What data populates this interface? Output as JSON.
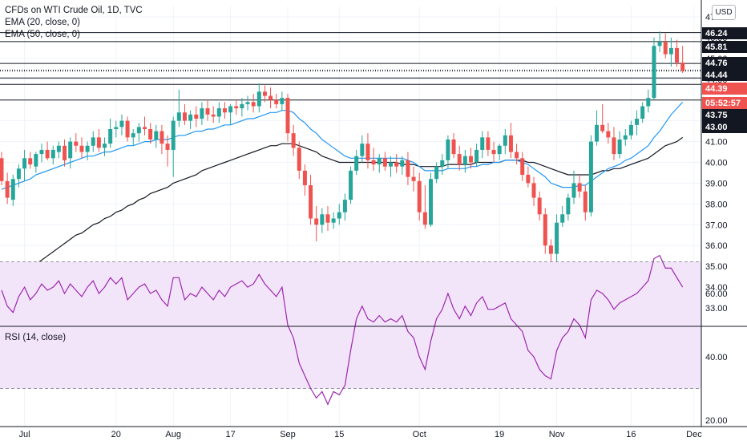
{
  "legend": {
    "title": "CFDs on WTI Crude Oil, 1D, TVC",
    "ema20": "EMA (20, close, 0)",
    "ema50": "EMA (50, close, 0)"
  },
  "rsi_label": "RSI (14, close)",
  "currency": "USD",
  "price_labels": [
    {
      "text": "46.24",
      "style": "dark"
    },
    {
      "text": "45.81",
      "style": "dark"
    },
    {
      "text": "44.76",
      "style": "dark"
    },
    {
      "text": "44.44",
      "style": "dark"
    },
    {
      "text": "44.39",
      "style": "red"
    },
    {
      "text": "05:52:57",
      "style": "red"
    },
    {
      "text": "43.75",
      "style": "dark"
    },
    {
      "text": "43.00",
      "style": "dark"
    }
  ],
  "colors": {
    "up": "#26a69a",
    "down": "#ef5350",
    "ema20": "#2196f3",
    "ema50": "#131722",
    "rsi": "#9c27b0",
    "rsi_band": "#f3e5f9"
  },
  "chart_data": [
    {
      "type": "candlestick",
      "title": "CFDs on WTI Crude Oil, 1D, TVC",
      "ylim": [
        32.5,
        47.2
      ],
      "y_ticks": [
        "33.00",
        "34.00",
        "35.00",
        "36.00",
        "37.00",
        "38.00",
        "39.00",
        "40.00",
        "41.00",
        "42.00",
        "43.00",
        "44.00",
        "45.00",
        "46.00",
        "47.00"
      ],
      "x_ticks": [
        "Jul",
        "20",
        "Aug",
        "17",
        "Sep",
        "15",
        "Oct",
        "19",
        "Nov",
        "16",
        "Dec"
      ],
      "x_tick_index": [
        4,
        20,
        30,
        40,
        50,
        59,
        73,
        87,
        97,
        110,
        121
      ],
      "horizontal_levels": [
        46.24,
        45.81,
        44.76,
        44.44,
        44.39,
        44.06,
        43.75,
        43.0
      ],
      "candles": [
        [
          40.2,
          40.5,
          38.9,
          39.1
        ],
        [
          39.1,
          39.5,
          38.0,
          38.3
        ],
        [
          38.2,
          39.4,
          37.9,
          39.2
        ],
        [
          39.2,
          39.9,
          38.8,
          39.7
        ],
        [
          39.7,
          40.6,
          39.1,
          40.2
        ],
        [
          40.2,
          40.5,
          39.7,
          39.9
        ],
        [
          39.8,
          40.5,
          39.5,
          40.4
        ],
        [
          40.4,
          40.9,
          40.0,
          40.6
        ],
        [
          40.6,
          41.0,
          40.1,
          40.2
        ],
        [
          40.2,
          40.8,
          39.9,
          40.6
        ],
        [
          40.5,
          41.0,
          40.2,
          40.8
        ],
        [
          40.8,
          41.1,
          39.8,
          40.1
        ],
        [
          40.2,
          41.2,
          39.7,
          41.0
        ],
        [
          41.0,
          41.4,
          40.5,
          40.8
        ],
        [
          40.8,
          41.2,
          40.2,
          40.5
        ],
        [
          40.5,
          41.0,
          40.1,
          40.8
        ],
        [
          40.8,
          41.5,
          40.5,
          41.2
        ],
        [
          41.2,
          41.6,
          40.5,
          40.7
        ],
        [
          40.7,
          41.2,
          40.3,
          40.9
        ],
        [
          40.9,
          42.1,
          40.7,
          41.6
        ],
        [
          41.6,
          42.0,
          41.2,
          41.7
        ],
        [
          41.7,
          42.3,
          41.3,
          42.0
        ],
        [
          42.0,
          42.2,
          41.0,
          41.2
        ],
        [
          41.2,
          41.6,
          40.8,
          41.4
        ],
        [
          41.4,
          41.9,
          41.0,
          41.7
        ],
        [
          41.7,
          42.2,
          41.3,
          41.6
        ],
        [
          41.6,
          41.9,
          40.9,
          41.1
        ],
        [
          41.1,
          41.8,
          40.7,
          41.5
        ],
        [
          41.5,
          41.8,
          40.4,
          40.9
        ],
        [
          40.9,
          41.3,
          39.8,
          40.6
        ],
        [
          40.6,
          42.2,
          39.3,
          42.0
        ],
        [
          42.0,
          43.5,
          41.7,
          42.4
        ],
        [
          42.4,
          42.8,
          41.8,
          42.0
        ],
        [
          42.0,
          42.5,
          41.6,
          42.3
        ],
        [
          42.3,
          42.7,
          41.7,
          42.1
        ],
        [
          42.1,
          42.9,
          41.8,
          42.6
        ],
        [
          42.6,
          43.0,
          42.0,
          42.3
        ],
        [
          42.3,
          42.7,
          41.9,
          42.2
        ],
        [
          42.2,
          42.9,
          41.9,
          42.6
        ],
        [
          42.6,
          42.9,
          42.1,
          42.4
        ],
        [
          42.4,
          42.8,
          41.8,
          42.7
        ],
        [
          42.7,
          43.0,
          42.3,
          42.6
        ],
        [
          42.6,
          43.1,
          42.2,
          42.8
        ],
        [
          42.8,
          43.2,
          42.5,
          42.9
        ],
        [
          42.9,
          43.3,
          42.4,
          42.7
        ],
        [
          42.7,
          43.8,
          42.4,
          43.4
        ],
        [
          43.4,
          43.7,
          42.9,
          43.2
        ],
        [
          43.2,
          43.6,
          42.6,
          43.0
        ],
        [
          43.0,
          43.3,
          42.6,
          42.8
        ],
        [
          42.8,
          43.4,
          42.5,
          43.1
        ],
        [
          43.1,
          43.3,
          41.0,
          41.4
        ],
        [
          41.4,
          41.8,
          40.3,
          40.7
        ],
        [
          40.7,
          41.0,
          39.2,
          39.6
        ],
        [
          39.6,
          39.9,
          38.4,
          38.9
        ],
        [
          38.9,
          39.4,
          37.0,
          37.3
        ],
        [
          37.3,
          37.9,
          36.2,
          37.0
        ],
        [
          37.0,
          37.8,
          36.6,
          37.5
        ],
        [
          37.5,
          37.9,
          36.7,
          37.1
        ],
        [
          37.1,
          37.6,
          36.8,
          37.3
        ],
        [
          37.3,
          38.0,
          37.0,
          37.6
        ],
        [
          37.6,
          38.5,
          37.2,
          38.2
        ],
        [
          38.2,
          39.8,
          38.0,
          39.6
        ],
        [
          39.6,
          40.6,
          39.4,
          40.3
        ],
        [
          40.3,
          41.3,
          40.0,
          40.9
        ],
        [
          40.9,
          41.4,
          39.7,
          40.1
        ],
        [
          40.1,
          40.7,
          39.6,
          39.9
        ],
        [
          39.9,
          40.4,
          39.5,
          40.2
        ],
        [
          40.2,
          40.5,
          39.6,
          39.8
        ],
        [
          39.8,
          40.3,
          39.3,
          40.0
        ],
        [
          40.0,
          40.4,
          39.5,
          39.8
        ],
        [
          39.8,
          40.3,
          39.4,
          40.1
        ],
        [
          40.1,
          40.5,
          38.9,
          39.3
        ],
        [
          39.3,
          39.8,
          38.6,
          39.1
        ],
        [
          39.1,
          39.5,
          37.2,
          37.6
        ],
        [
          37.6,
          38.9,
          36.8,
          37.0
        ],
        [
          37.0,
          39.5,
          36.9,
          39.2
        ],
        [
          39.2,
          40.0,
          39.0,
          39.8
        ],
        [
          39.8,
          40.4,
          39.4,
          40.1
        ],
        [
          40.1,
          41.3,
          39.7,
          41.1
        ],
        [
          41.1,
          41.4,
          40.2,
          40.4
        ],
        [
          40.4,
          40.8,
          39.6,
          39.9
        ],
        [
          39.9,
          40.6,
          39.5,
          40.3
        ],
        [
          40.3,
          40.7,
          39.7,
          40.0
        ],
        [
          40.0,
          40.9,
          39.8,
          40.6
        ],
        [
          40.6,
          41.5,
          40.2,
          41.2
        ],
        [
          41.2,
          41.5,
          40.3,
          40.6
        ],
        [
          40.6,
          41.0,
          40.0,
          40.4
        ],
        [
          40.4,
          40.9,
          40.1,
          40.8
        ],
        [
          40.8,
          41.6,
          40.4,
          41.3
        ],
        [
          41.3,
          41.9,
          40.2,
          40.5
        ],
        [
          40.5,
          40.9,
          39.9,
          40.2
        ],
        [
          40.2,
          40.5,
          39.1,
          39.4
        ],
        [
          39.4,
          39.8,
          38.8,
          39.0
        ],
        [
          39.0,
          39.3,
          37.9,
          38.3
        ],
        [
          38.3,
          38.6,
          37.2,
          37.5
        ],
        [
          37.5,
          37.8,
          35.6,
          36.0
        ],
        [
          36.0,
          36.3,
          34.9,
          35.6
        ],
        [
          35.6,
          37.5,
          33.7,
          37.1
        ],
        [
          37.1,
          37.9,
          36.9,
          37.5
        ],
        [
          37.5,
          38.5,
          37.2,
          38.3
        ],
        [
          38.3,
          39.6,
          38.0,
          39.0
        ],
        [
          39.0,
          39.4,
          38.3,
          38.6
        ],
        [
          38.6,
          38.9,
          37.2,
          37.6
        ],
        [
          37.6,
          41.3,
          37.4,
          41.0
        ],
        [
          41.0,
          42.5,
          40.8,
          41.8
        ],
        [
          41.8,
          42.8,
          41.4,
          41.5
        ],
        [
          41.5,
          41.9,
          40.9,
          41.2
        ],
        [
          41.2,
          41.7,
          40.1,
          40.4
        ],
        [
          40.4,
          41.5,
          40.2,
          41.1
        ],
        [
          41.1,
          41.6,
          40.8,
          41.3
        ],
        [
          41.3,
          42.0,
          41.1,
          41.8
        ],
        [
          41.8,
          42.5,
          41.3,
          42.1
        ],
        [
          42.1,
          42.9,
          41.9,
          42.7
        ],
        [
          42.7,
          43.5,
          42.4,
          43.1
        ],
        [
          43.1,
          46.0,
          43.0,
          45.6
        ],
        [
          45.6,
          46.3,
          45.3,
          45.8
        ],
        [
          45.8,
          46.2,
          45.0,
          45.2
        ],
        [
          45.2,
          46.0,
          44.6,
          45.5
        ],
        [
          45.5,
          45.9,
          44.6,
          44.8
        ],
        [
          44.8,
          45.6,
          44.3,
          44.4
        ]
      ],
      "series": [
        {
          "name": "EMA (20, close, 0)",
          "values": [
            38.7,
            38.8,
            38.9,
            39.0,
            39.1,
            39.2,
            39.4,
            39.5,
            39.6,
            39.7,
            39.8,
            39.9,
            40.0,
            40.1,
            40.2,
            40.3,
            40.3,
            40.4,
            40.5,
            40.5,
            40.6,
            40.7,
            40.8,
            40.8,
            40.9,
            41.0,
            41.0,
            41.1,
            41.1,
            41.1,
            41.2,
            41.3,
            41.3,
            41.4,
            41.5,
            41.5,
            41.6,
            41.6,
            41.7,
            41.8,
            41.8,
            41.9,
            42.0,
            42.1,
            42.1,
            42.2,
            42.3,
            42.4,
            42.4,
            42.5,
            42.5,
            42.4,
            42.1,
            41.9,
            41.6,
            41.4,
            41.1,
            40.9,
            40.7,
            40.5,
            40.3,
            40.2,
            40.2,
            40.2,
            40.2,
            40.2,
            40.2,
            40.2,
            40.2,
            40.2,
            40.2,
            40.1,
            40.0,
            39.8,
            39.6,
            39.6,
            39.6,
            39.6,
            39.7,
            39.7,
            39.7,
            39.7,
            39.8,
            39.8,
            39.9,
            39.9,
            40.0,
            40.0,
            40.1,
            40.1,
            40.1,
            40.0,
            39.9,
            39.7,
            39.5,
            39.3,
            39.0,
            38.9,
            38.8,
            38.8,
            38.8,
            38.9,
            38.9,
            39.1,
            39.3,
            39.5,
            39.7,
            39.8,
            39.9,
            40.1,
            40.2,
            40.4,
            40.6,
            40.8,
            41.2,
            41.5,
            41.9,
            42.3,
            42.6,
            42.9
          ]
        },
        {
          "name": "EMA (50, close, 0)",
          "values": [
            33.6,
            33.9,
            34.2,
            34.4,
            34.6,
            34.9,
            35.1,
            35.3,
            35.5,
            35.7,
            35.9,
            36.1,
            36.3,
            36.5,
            36.6,
            36.8,
            37.0,
            37.1,
            37.3,
            37.4,
            37.6,
            37.7,
            37.9,
            38.0,
            38.2,
            38.3,
            38.5,
            38.6,
            38.7,
            38.8,
            39.0,
            39.1,
            39.2,
            39.3,
            39.4,
            39.6,
            39.7,
            39.8,
            39.9,
            40.0,
            40.1,
            40.2,
            40.3,
            40.4,
            40.5,
            40.6,
            40.7,
            40.8,
            40.8,
            40.9,
            40.9,
            40.9,
            40.8,
            40.7,
            40.6,
            40.5,
            40.3,
            40.2,
            40.1,
            40.0,
            40.0,
            40.0,
            40.0,
            40.0,
            40.0,
            40.0,
            40.0,
            40.0,
            40.0,
            40.0,
            39.9,
            39.9,
            39.9,
            39.8,
            39.8,
            39.8,
            39.8,
            39.8,
            39.9,
            39.9,
            39.9,
            39.9,
            39.9,
            40.0,
            40.0,
            40.0,
            40.0,
            40.0,
            40.1,
            40.1,
            40.1,
            40.1,
            40.0,
            40.0,
            39.9,
            39.8,
            39.7,
            39.6,
            39.5,
            39.4,
            39.4,
            39.4,
            39.4,
            39.4,
            39.5,
            39.6,
            39.6,
            39.7,
            39.7,
            39.8,
            39.9,
            40.0,
            40.1,
            40.2,
            40.4,
            40.6,
            40.8,
            40.9,
            41.0,
            41.2
          ]
        }
      ]
    },
    {
      "type": "line",
      "title": "RSI (14, close)",
      "ylim": [
        20,
        73
      ],
      "y_ticks": [
        "20.00",
        "40.00",
        "60.00"
      ],
      "band": [
        30,
        70
      ],
      "series": [
        {
          "name": "RSI (14, close)",
          "values": [
            61,
            56,
            54,
            59,
            62,
            58,
            60,
            63,
            61,
            62,
            64,
            60,
            63,
            61,
            59,
            62,
            64,
            60,
            62,
            65,
            63,
            65,
            58,
            60,
            62,
            63,
            60,
            61,
            58,
            56,
            65,
            65,
            58,
            60,
            59,
            62,
            60,
            58,
            61,
            59,
            62,
            63,
            64,
            62,
            63,
            66,
            63,
            61,
            59,
            62,
            50,
            46,
            38,
            34,
            30,
            27,
            29,
            25,
            29,
            28,
            31,
            42,
            52,
            56,
            52,
            51,
            53,
            51,
            52,
            51,
            53,
            48,
            46,
            40,
            36,
            45,
            52,
            55,
            60,
            55,
            52,
            56,
            53,
            57,
            59,
            55,
            55,
            56,
            57,
            52,
            50,
            48,
            42,
            40,
            36,
            34,
            33,
            42,
            46,
            48,
            52,
            50,
            46,
            58,
            61,
            60,
            58,
            55,
            57,
            58,
            59,
            60,
            62,
            64,
            71,
            72,
            68,
            68,
            65,
            62
          ]
        }
      ]
    }
  ]
}
